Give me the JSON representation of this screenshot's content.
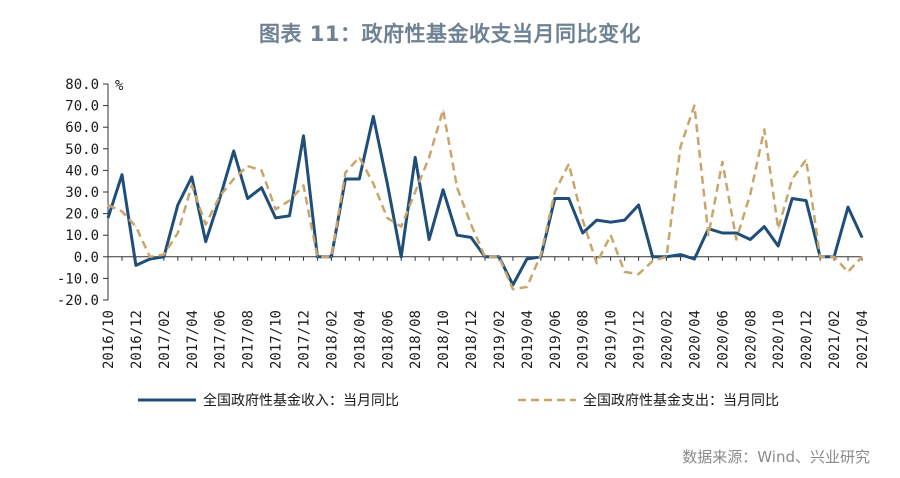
{
  "title": "图表 11：政府性基金收支当月同比变化",
  "source": "数据来源：Wind、兴业研究",
  "chart_data": {
    "type": "line",
    "ylabel": "%",
    "ylim": [
      -20,
      80
    ],
    "yticks": [
      "80.0",
      "70.0",
      "60.0",
      "50.0",
      "40.0",
      "30.0",
      "20.0",
      "10.0",
      "0.0",
      "-10.0",
      "-20.0"
    ],
    "grid": false,
    "legend_position": "bottom",
    "x": [
      "2016/10",
      "2016/11",
      "2016/12",
      "2017/01",
      "2017/02",
      "2017/03",
      "2017/04",
      "2017/05",
      "2017/06",
      "2017/07",
      "2017/08",
      "2017/09",
      "2017/10",
      "2017/11",
      "2017/12",
      "2018/01",
      "2018/02",
      "2018/03",
      "2018/04",
      "2018/05",
      "2018/06",
      "2018/07",
      "2018/08",
      "2018/09",
      "2018/10",
      "2018/11",
      "2018/12",
      "2019/01",
      "2019/02",
      "2019/03",
      "2019/04",
      "2019/05",
      "2019/06",
      "2019/07",
      "2019/08",
      "2019/09",
      "2019/10",
      "2019/11",
      "2019/12",
      "2020/01",
      "2020/02",
      "2020/03",
      "2020/04",
      "2020/05",
      "2020/06",
      "2020/07",
      "2020/08",
      "2020/09",
      "2020/10",
      "2020/11",
      "2020/12",
      "2021/01",
      "2021/02",
      "2021/03",
      "2021/04"
    ],
    "x_tick_labels": [
      "2016/10",
      "2016/12",
      "2017/02",
      "2017/04",
      "2017/06",
      "2017/08",
      "2017/10",
      "2017/12",
      "2018/02",
      "2018/04",
      "2018/06",
      "2018/08",
      "2018/10",
      "2018/12",
      "2019/02",
      "2019/04",
      "2019/06",
      "2019/08",
      "2019/10",
      "2019/12",
      "2020/02",
      "2020/04",
      "2020/06",
      "2020/08",
      "2020/10",
      "2020/12",
      "2021/02",
      "2021/04"
    ],
    "series": [
      {
        "name": "全国政府性基金收入：当月同比",
        "style": "solid",
        "color": "#1f4e79",
        "values": [
          18,
          38,
          -4,
          -1,
          0,
          24,
          37,
          7,
          27,
          49,
          27,
          32,
          18,
          19,
          56,
          0,
          0,
          36,
          36,
          65,
          34,
          0,
          46,
          8,
          31,
          10,
          9,
          0,
          0,
          -13,
          -1,
          0,
          27,
          27,
          11,
          17,
          16,
          17,
          24,
          0,
          0,
          1,
          -1,
          13,
          11,
          11,
          8,
          14,
          5,
          27,
          26,
          0,
          0,
          23,
          9
        ]
      },
      {
        "name": "全国政府性基金支出：当月同比",
        "style": "dashed",
        "color": "#c9a56c",
        "values": [
          24,
          21,
          14,
          0,
          1,
          11,
          33,
          15,
          28,
          36,
          42,
          40,
          22,
          26,
          33,
          0,
          0,
          39,
          46,
          34,
          18,
          14,
          30,
          46,
          68,
          32,
          15,
          0,
          0,
          -15,
          -14,
          1,
          30,
          43,
          17,
          -3,
          10,
          -7,
          -8,
          -2,
          0,
          51,
          70,
          10,
          44,
          8,
          29,
          59,
          13,
          36,
          45,
          0,
          0,
          -7,
          0
        ]
      }
    ]
  }
}
